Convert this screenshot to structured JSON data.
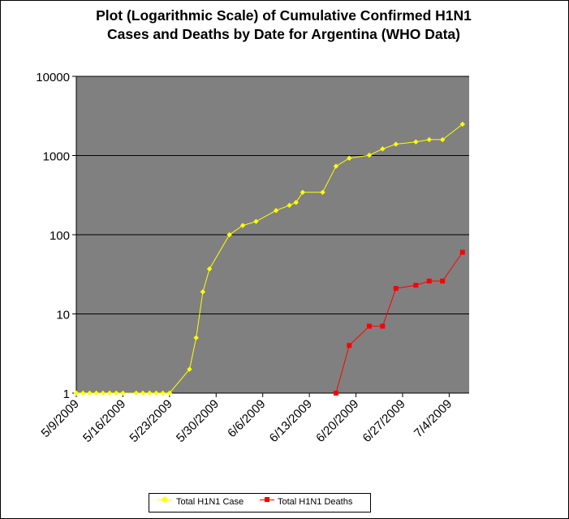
{
  "chart_data": {
    "type": "line",
    "title_lines": [
      "Plot (Logarithmic Scale) of Cumulative Confirmed H1N1",
      "Cases and Deaths by Date for Argentina (WHO Data)"
    ],
    "y_scale": "log",
    "ylim": [
      1,
      10000
    ],
    "y_ticks": [
      "10000",
      "1000",
      "100",
      "10",
      "1"
    ],
    "x_tick_labels": [
      "5/9/2009",
      "5/16/2009",
      "5/23/2009",
      "5/30/2009",
      "6/6/2009",
      "6/13/2009",
      "6/20/2009",
      "6/27/2009",
      "7/4/2009"
    ],
    "x_start": "5/9/2009",
    "x_end": "7/7/2009",
    "plot_background": "#808080",
    "gridlines": true,
    "legend_position": "bottom",
    "series": [
      {
        "name": "Total H1N1 Case",
        "color": "#ffff00",
        "marker": "diamond",
        "points": [
          [
            "5/9/2009",
            1
          ],
          [
            "5/10/2009",
            1
          ],
          [
            "5/11/2009",
            1
          ],
          [
            "5/12/2009",
            1
          ],
          [
            "5/13/2009",
            1
          ],
          [
            "5/14/2009",
            1
          ],
          [
            "5/15/2009",
            1
          ],
          [
            "5/16/2009",
            1
          ],
          [
            "5/18/2009",
            1
          ],
          [
            "5/19/2009",
            1
          ],
          [
            "5/20/2009",
            1
          ],
          [
            "5/21/2009",
            1
          ],
          [
            "5/22/2009",
            1
          ],
          [
            "5/23/2009",
            1
          ],
          [
            "5/26/2009",
            2
          ],
          [
            "5/27/2009",
            5
          ],
          [
            "5/28/2009",
            19
          ],
          [
            "5/29/2009",
            37
          ],
          [
            "6/1/2009",
            100
          ],
          [
            "6/3/2009",
            131
          ],
          [
            "6/5/2009",
            147
          ],
          [
            "6/8/2009",
            202
          ],
          [
            "6/10/2009",
            235
          ],
          [
            "6/11/2009",
            256
          ],
          [
            "6/12/2009",
            343
          ],
          [
            "6/15/2009",
            343
          ],
          [
            "6/17/2009",
            733
          ],
          [
            "6/19/2009",
            925
          ],
          [
            "6/22/2009",
            1010
          ],
          [
            "6/24/2009",
            1213
          ],
          [
            "6/26/2009",
            1391
          ],
          [
            "6/29/2009",
            1488
          ],
          [
            "7/1/2009",
            1587
          ],
          [
            "7/3/2009",
            1587
          ],
          [
            "7/6/2009",
            2485
          ]
        ]
      },
      {
        "name": "Total H1N1 Deaths",
        "color": "#ff0000",
        "marker": "square",
        "points": [
          [
            "6/17/2009",
            1
          ],
          [
            "6/19/2009",
            4
          ],
          [
            "6/22/2009",
            7
          ],
          [
            "6/24/2009",
            7
          ],
          [
            "6/26/2009",
            21
          ],
          [
            "6/29/2009",
            23
          ],
          [
            "7/1/2009",
            26
          ],
          [
            "7/3/2009",
            26
          ],
          [
            "7/6/2009",
            60
          ]
        ]
      }
    ]
  }
}
